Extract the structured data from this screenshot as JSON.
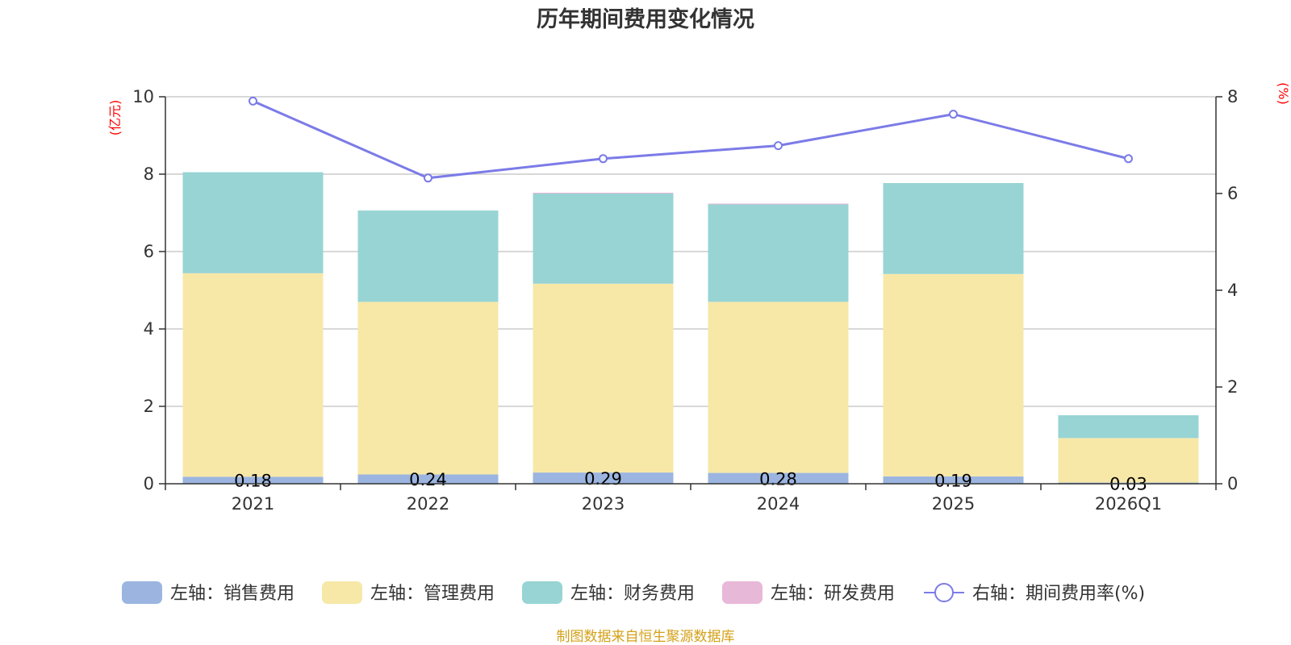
{
  "chart_data": {
    "type": "bar",
    "title": "历年期间费用变化情况",
    "categories": [
      "2021",
      "2022",
      "2023",
      "2024",
      "2025",
      "2026Q1"
    ],
    "series": [
      {
        "name": "左轴：销售费用",
        "axis": "left",
        "color": "#9bb5e0",
        "values": [
          0.18,
          0.24,
          0.29,
          0.28,
          0.19,
          0.03
        ],
        "labels": [
          "0.18",
          "0.24",
          "0.29",
          "0.28",
          "0.19",
          "0.03"
        ]
      },
      {
        "name": "左轴：管理费用",
        "axis": "left",
        "color": "#f7e8a8",
        "values": [
          5.26,
          4.46,
          4.88,
          4.42,
          5.23,
          1.15
        ]
      },
      {
        "name": "左轴：财务费用",
        "axis": "left",
        "color": "#98d4d4",
        "values": [
          2.61,
          2.36,
          2.33,
          2.52,
          2.35,
          0.59
        ]
      },
      {
        "name": "左轴：研发费用",
        "axis": "left",
        "color": "#e8b8d8",
        "values": [
          0.0,
          0.0,
          0.02,
          0.02,
          0.0,
          0.0
        ]
      }
    ],
    "line_series": {
      "name": "右轴：期间费用率(%)",
      "axis": "right",
      "color": "#7b7be8",
      "values": [
        7.91,
        6.32,
        6.72,
        6.99,
        7.64,
        6.72
      ]
    },
    "left_axis": {
      "unit": "(亿元)",
      "ylim": [
        0,
        10
      ],
      "ticks": [
        "0",
        "2",
        "4",
        "6",
        "8",
        "10"
      ]
    },
    "right_axis": {
      "unit": "(%)",
      "ylim": [
        0,
        8
      ],
      "ticks": [
        "0",
        "2",
        "4",
        "6",
        "8"
      ]
    },
    "grid": true,
    "legend_position": "bottom",
    "source": "制图数据来自恒生聚源数据库"
  }
}
